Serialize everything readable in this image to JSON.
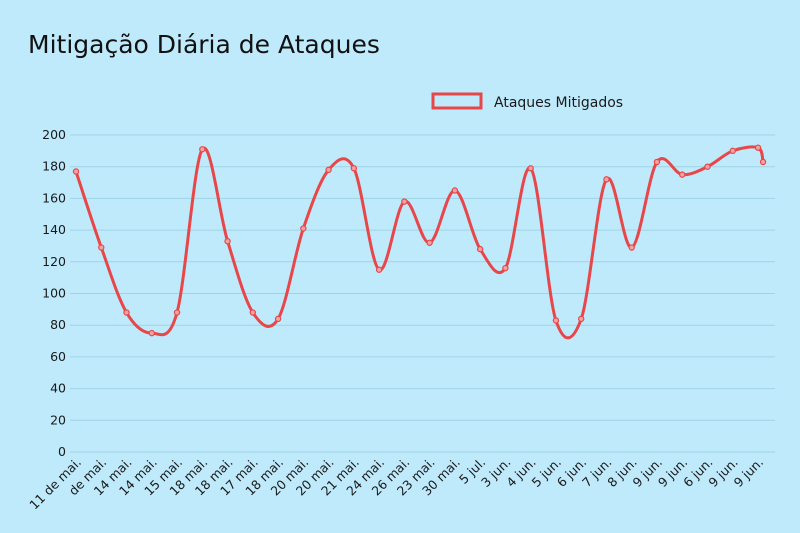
{
  "chart_data": {
    "type": "line",
    "title": "Mitigação Diária de Ataques",
    "xlabel": "",
    "ylabel": "",
    "ylim": [
      0,
      200
    ],
    "yticks": [
      0,
      20,
      40,
      60,
      80,
      100,
      120,
      140,
      160,
      180,
      200
    ],
    "grid": true,
    "legend_position": "top-center",
    "categories": [
      "11 de mai.",
      "de mai.",
      "14 mai.",
      "14 mai.",
      "15 mai.",
      "18 mai.",
      "18 mai.",
      "17 mai.",
      "18 mai.",
      "20 mai.",
      "20 mai.",
      "21 mai.",
      "24 mai.",
      "26 mai.",
      "23 mai.",
      "30 mai.",
      "5 jul.",
      "3 jun.",
      "4 jun.",
      "5 jun.",
      "6 jun.",
      "7 jun.",
      "8 jun.",
      "9 jun.",
      "9 jun.",
      "6 jun.",
      "9 jun.",
      "9 jun."
    ],
    "series": [
      {
        "name": "Ataques Mitigados",
        "color": "#e8474a",
        "values": [
          177,
          129,
          88,
          75,
          88,
          191,
          133,
          88,
          84,
          141,
          178,
          179,
          115,
          158,
          132,
          165,
          128,
          116,
          179,
          83,
          84,
          172,
          129,
          183,
          175,
          180,
          190,
          192
        ]
      }
    ],
    "extra_points": [
      {
        "x_index": 27.2,
        "y": 183
      }
    ]
  }
}
